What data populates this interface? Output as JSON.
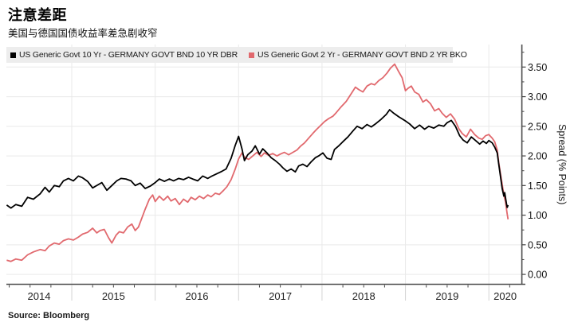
{
  "page": {
    "title": "注意差距",
    "subtitle": "美国与德国国债收益率差急剧收窄",
    "source": "Source: Bloomberg"
  },
  "legend": {
    "items": [
      {
        "label": "US Generic Govt 10 Yr - GERMANY GOVT BND 10 YR DBR",
        "color": "#000000"
      },
      {
        "label": "US Generic Govt 2 Yr - GERMANY GOVT BND 2 YR BKO",
        "color": "#e1696e"
      }
    ]
  },
  "chart_data": {
    "type": "line",
    "title": "注意差距",
    "subtitle": "美国与德国国债收益率差急剧收窄",
    "ylabel": "Spread (% Points)",
    "source": "Source: Bloomberg",
    "x_unit": "decimal_year",
    "xlim": [
      2014.216,
      2020.39
    ],
    "ylim": [
      -0.16,
      3.88
    ],
    "grid": true,
    "legend_position": "top-left",
    "colors": {
      "grid": "#e9e9e9",
      "axis": "#4d4d4d",
      "tick": "#444444",
      "separator": "#d4d4d4",
      "tick_label": "#111111",
      "year_label": "#222222"
    },
    "y_ticks": [
      {
        "value": 0.0,
        "label": "0.00"
      },
      {
        "value": 0.5,
        "label": "0.50"
      },
      {
        "value": 1.0,
        "label": "1.00"
      },
      {
        "value": 1.5,
        "label": "1.50"
      },
      {
        "value": 2.0,
        "label": "2.00"
      },
      {
        "value": 2.5,
        "label": "2.50"
      },
      {
        "value": 3.0,
        "label": "3.00"
      },
      {
        "value": 3.5,
        "label": "3.50"
      }
    ],
    "y_minor_ticks": [
      0.25,
      0.75,
      1.25,
      1.75,
      2.25,
      2.75,
      3.25,
      3.75
    ],
    "x_years": [
      {
        "year": 2014,
        "label": "2014"
      },
      {
        "year": 2015,
        "label": "2015"
      },
      {
        "year": 2016,
        "label": "2016"
      },
      {
        "year": 2017,
        "label": "2017"
      },
      {
        "year": 2018,
        "label": "2018"
      },
      {
        "year": 2019,
        "label": "2019"
      },
      {
        "year": 2020,
        "label": "2020"
      }
    ],
    "x_gridlines": [
      2015,
      2016,
      2017,
      2018,
      2019,
      2020
    ],
    "x_minor_step": 0.25,
    "series": [
      {
        "name": "US Generic Govt 10 Yr - GERMANY GOVT BND 10 YR DBR",
        "color": "#000000",
        "points": [
          [
            2014.22,
            1.17
          ],
          [
            2014.27,
            1.12
          ],
          [
            2014.33,
            1.18
          ],
          [
            2014.4,
            1.15
          ],
          [
            2014.47,
            1.3
          ],
          [
            2014.54,
            1.27
          ],
          [
            2014.62,
            1.36
          ],
          [
            2014.68,
            1.47
          ],
          [
            2014.73,
            1.39
          ],
          [
            2014.79,
            1.5
          ],
          [
            2014.85,
            1.48
          ],
          [
            2014.9,
            1.58
          ],
          [
            2014.96,
            1.62
          ],
          [
            2015.02,
            1.58
          ],
          [
            2015.08,
            1.66
          ],
          [
            2015.13,
            1.63
          ],
          [
            2015.19,
            1.57
          ],
          [
            2015.25,
            1.46
          ],
          [
            2015.31,
            1.51
          ],
          [
            2015.36,
            1.55
          ],
          [
            2015.42,
            1.42
          ],
          [
            2015.48,
            1.5
          ],
          [
            2015.54,
            1.58
          ],
          [
            2015.59,
            1.62
          ],
          [
            2015.65,
            1.61
          ],
          [
            2015.71,
            1.58
          ],
          [
            2015.76,
            1.5
          ],
          [
            2015.82,
            1.54
          ],
          [
            2015.88,
            1.45
          ],
          [
            2015.94,
            1.49
          ],
          [
            2016.0,
            1.55
          ],
          [
            2016.05,
            1.61
          ],
          [
            2016.11,
            1.57
          ],
          [
            2016.17,
            1.61
          ],
          [
            2016.22,
            1.58
          ],
          [
            2016.28,
            1.62
          ],
          [
            2016.34,
            1.6
          ],
          [
            2016.4,
            1.64
          ],
          [
            2016.45,
            1.61
          ],
          [
            2016.51,
            1.58
          ],
          [
            2016.57,
            1.66
          ],
          [
            2016.63,
            1.62
          ],
          [
            2016.68,
            1.66
          ],
          [
            2016.74,
            1.7
          ],
          [
            2016.8,
            1.74
          ],
          [
            2016.85,
            1.78
          ],
          [
            2016.91,
            1.96
          ],
          [
            2016.96,
            2.18
          ],
          [
            2017.0,
            2.33
          ],
          [
            2017.04,
            2.12
          ],
          [
            2017.07,
            1.92
          ],
          [
            2017.11,
            2.02
          ],
          [
            2017.16,
            2.08
          ],
          [
            2017.2,
            2.17
          ],
          [
            2017.25,
            2.03
          ],
          [
            2017.29,
            2.12
          ],
          [
            2017.34,
            2.05
          ],
          [
            2017.39,
            1.97
          ],
          [
            2017.44,
            1.92
          ],
          [
            2017.49,
            1.86
          ],
          [
            2017.53,
            1.8
          ],
          [
            2017.58,
            1.74
          ],
          [
            2017.63,
            1.78
          ],
          [
            2017.68,
            1.73
          ],
          [
            2017.72,
            1.83
          ],
          [
            2017.77,
            1.86
          ],
          [
            2017.82,
            1.82
          ],
          [
            2017.87,
            1.9
          ],
          [
            2017.92,
            1.97
          ],
          [
            2017.96,
            2.0
          ],
          [
            2018.01,
            2.05
          ],
          [
            2018.06,
            1.96
          ],
          [
            2018.11,
            1.94
          ],
          [
            2018.15,
            2.11
          ],
          [
            2018.2,
            2.17
          ],
          [
            2018.25,
            2.24
          ],
          [
            2018.31,
            2.32
          ],
          [
            2018.37,
            2.42
          ],
          [
            2018.42,
            2.5
          ],
          [
            2018.48,
            2.46
          ],
          [
            2018.54,
            2.53
          ],
          [
            2018.59,
            2.49
          ],
          [
            2018.65,
            2.55
          ],
          [
            2018.71,
            2.62
          ],
          [
            2018.77,
            2.7
          ],
          [
            2018.81,
            2.78
          ],
          [
            2018.86,
            2.72
          ],
          [
            2018.92,
            2.66
          ],
          [
            2019.0,
            2.59
          ],
          [
            2019.05,
            2.54
          ],
          [
            2019.11,
            2.46
          ],
          [
            2019.17,
            2.52
          ],
          [
            2019.23,
            2.45
          ],
          [
            2019.28,
            2.5
          ],
          [
            2019.34,
            2.47
          ],
          [
            2019.4,
            2.52
          ],
          [
            2019.46,
            2.5
          ],
          [
            2019.5,
            2.56
          ],
          [
            2019.55,
            2.6
          ],
          [
            2019.6,
            2.5
          ],
          [
            2019.65,
            2.34
          ],
          [
            2019.69,
            2.27
          ],
          [
            2019.74,
            2.22
          ],
          [
            2019.79,
            2.32
          ],
          [
            2019.84,
            2.26
          ],
          [
            2019.89,
            2.2
          ],
          [
            2019.93,
            2.25
          ],
          [
            2019.97,
            2.21
          ],
          [
            2020.0,
            2.26
          ],
          [
            2020.04,
            2.22
          ],
          [
            2020.07,
            2.15
          ],
          [
            2020.1,
            2.05
          ],
          [
            2020.12,
            1.85
          ],
          [
            2020.14,
            1.65
          ],
          [
            2020.16,
            1.45
          ],
          [
            2020.18,
            1.32
          ],
          [
            2020.19,
            1.38
          ],
          [
            2020.21,
            1.2
          ],
          [
            2020.22,
            1.13
          ],
          [
            2020.23,
            1.17
          ]
        ]
      },
      {
        "name": "US Generic Govt 2 Yr - GERMANY GOVT BND 2 YR BKO",
        "color": "#e1696e",
        "points": [
          [
            2014.22,
            0.24
          ],
          [
            2014.27,
            0.22
          ],
          [
            2014.33,
            0.26
          ],
          [
            2014.4,
            0.24
          ],
          [
            2014.47,
            0.33
          ],
          [
            2014.54,
            0.38
          ],
          [
            2014.62,
            0.42
          ],
          [
            2014.68,
            0.4
          ],
          [
            2014.73,
            0.48
          ],
          [
            2014.79,
            0.53
          ],
          [
            2014.85,
            0.51
          ],
          [
            2014.9,
            0.57
          ],
          [
            2014.96,
            0.6
          ],
          [
            2015.02,
            0.58
          ],
          [
            2015.08,
            0.63
          ],
          [
            2015.13,
            0.68
          ],
          [
            2015.19,
            0.71
          ],
          [
            2015.25,
            0.78
          ],
          [
            2015.3,
            0.7
          ],
          [
            2015.34,
            0.74
          ],
          [
            2015.39,
            0.76
          ],
          [
            2015.44,
            0.62
          ],
          [
            2015.48,
            0.53
          ],
          [
            2015.53,
            0.66
          ],
          [
            2015.57,
            0.72
          ],
          [
            2015.62,
            0.7
          ],
          [
            2015.67,
            0.8
          ],
          [
            2015.72,
            0.85
          ],
          [
            2015.76,
            0.74
          ],
          [
            2015.8,
            0.8
          ],
          [
            2015.84,
            0.95
          ],
          [
            2015.88,
            1.1
          ],
          [
            2015.93,
            1.27
          ],
          [
            2015.97,
            1.34
          ],
          [
            2016.0,
            1.23
          ],
          [
            2016.05,
            1.32
          ],
          [
            2016.1,
            1.25
          ],
          [
            2016.15,
            1.32
          ],
          [
            2016.19,
            1.24
          ],
          [
            2016.24,
            1.28
          ],
          [
            2016.29,
            1.18
          ],
          [
            2016.34,
            1.27
          ],
          [
            2016.39,
            1.22
          ],
          [
            2016.43,
            1.3
          ],
          [
            2016.48,
            1.26
          ],
          [
            2016.53,
            1.32
          ],
          [
            2016.58,
            1.28
          ],
          [
            2016.63,
            1.34
          ],
          [
            2016.67,
            1.31
          ],
          [
            2016.72,
            1.37
          ],
          [
            2016.77,
            1.35
          ],
          [
            2016.82,
            1.42
          ],
          [
            2016.86,
            1.48
          ],
          [
            2016.91,
            1.6
          ],
          [
            2016.96,
            1.78
          ],
          [
            2017.0,
            1.95
          ],
          [
            2017.04,
            2.05
          ],
          [
            2017.07,
            1.98
          ],
          [
            2017.12,
            1.94
          ],
          [
            2017.17,
            2.0
          ],
          [
            2017.22,
            2.06
          ],
          [
            2017.27,
            1.99
          ],
          [
            2017.31,
            2.05
          ],
          [
            2017.36,
            2.01
          ],
          [
            2017.41,
            2.04
          ],
          [
            2017.46,
            2.0
          ],
          [
            2017.5,
            2.03
          ],
          [
            2017.55,
            2.06
          ],
          [
            2017.6,
            2.02
          ],
          [
            2017.65,
            2.06
          ],
          [
            2017.7,
            2.1
          ],
          [
            2017.74,
            2.16
          ],
          [
            2017.79,
            2.22
          ],
          [
            2017.84,
            2.3
          ],
          [
            2017.89,
            2.38
          ],
          [
            2017.93,
            2.44
          ],
          [
            2017.98,
            2.51
          ],
          [
            2018.03,
            2.58
          ],
          [
            2018.08,
            2.63
          ],
          [
            2018.13,
            2.67
          ],
          [
            2018.17,
            2.73
          ],
          [
            2018.23,
            2.83
          ],
          [
            2018.29,
            2.92
          ],
          [
            2018.35,
            3.05
          ],
          [
            2018.4,
            3.16
          ],
          [
            2018.44,
            3.12
          ],
          [
            2018.49,
            3.08
          ],
          [
            2018.54,
            3.18
          ],
          [
            2018.59,
            3.22
          ],
          [
            2018.63,
            3.2
          ],
          [
            2018.68,
            3.27
          ],
          [
            2018.73,
            3.32
          ],
          [
            2018.78,
            3.4
          ],
          [
            2018.82,
            3.48
          ],
          [
            2018.87,
            3.55
          ],
          [
            2018.92,
            3.42
          ],
          [
            2018.96,
            3.32
          ],
          [
            2019.0,
            3.1
          ],
          [
            2019.03,
            3.14
          ],
          [
            2019.07,
            3.18
          ],
          [
            2019.11,
            3.08
          ],
          [
            2019.16,
            3.04
          ],
          [
            2019.21,
            2.91
          ],
          [
            2019.25,
            2.95
          ],
          [
            2019.3,
            2.88
          ],
          [
            2019.35,
            2.76
          ],
          [
            2019.4,
            2.8
          ],
          [
            2019.44,
            2.72
          ],
          [
            2019.49,
            2.65
          ],
          [
            2019.54,
            2.71
          ],
          [
            2019.59,
            2.62
          ],
          [
            2019.64,
            2.46
          ],
          [
            2019.68,
            2.38
          ],
          [
            2019.73,
            2.32
          ],
          [
            2019.78,
            2.45
          ],
          [
            2019.83,
            2.36
          ],
          [
            2019.88,
            2.3
          ],
          [
            2019.92,
            2.28
          ],
          [
            2019.96,
            2.34
          ],
          [
            2020.0,
            2.36
          ],
          [
            2020.04,
            2.3
          ],
          [
            2020.07,
            2.24
          ],
          [
            2020.1,
            2.1
          ],
          [
            2020.12,
            1.88
          ],
          [
            2020.14,
            1.7
          ],
          [
            2020.16,
            1.52
          ],
          [
            2020.18,
            1.35
          ],
          [
            2020.2,
            1.22
          ],
          [
            2020.22,
            1.02
          ],
          [
            2020.23,
            0.93
          ]
        ]
      }
    ]
  }
}
